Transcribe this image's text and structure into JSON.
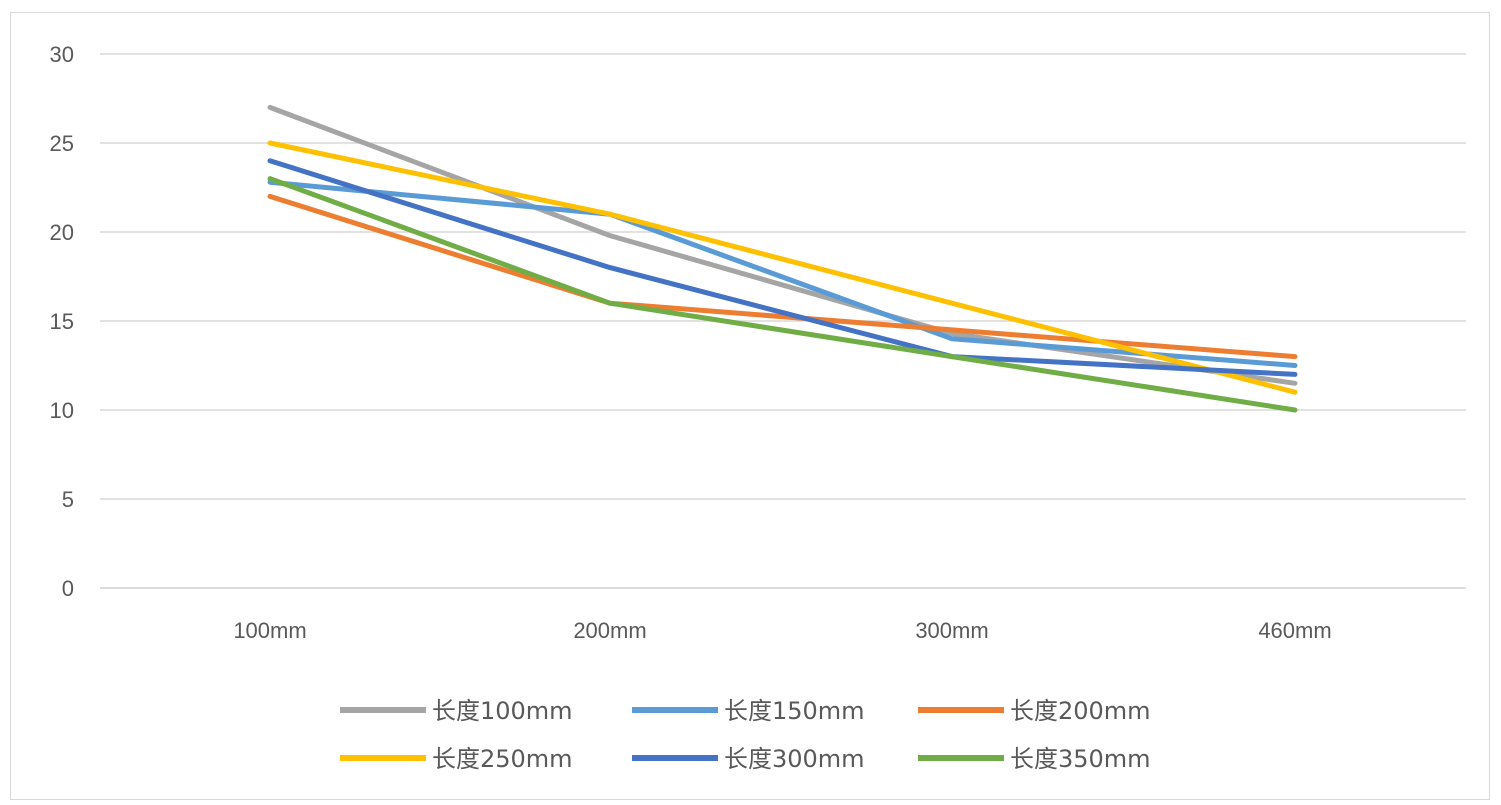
{
  "chart_data": {
    "type": "line",
    "categories": [
      "100mm",
      "200mm",
      "300mm",
      "460mm"
    ],
    "y_ticks": [
      "0",
      "5",
      "10",
      "15",
      "20",
      "25",
      "30"
    ],
    "ylim": [
      0,
      30
    ],
    "grid": true,
    "legend_position": "bottom",
    "series": [
      {
        "name": "长度100mm",
        "color": "#a5a5a5",
        "values": [
          27,
          19.8,
          14.3,
          11.5
        ]
      },
      {
        "name": "长度150mm",
        "color": "#5b9bd5",
        "values": [
          22.8,
          21,
          14,
          12.5
        ]
      },
      {
        "name": "长度200mm",
        "color": "#ed7d31",
        "values": [
          22,
          16,
          14.5,
          13
        ]
      },
      {
        "name": "长度250mm",
        "color": "#ffc000",
        "values": [
          25,
          21,
          16,
          11
        ]
      },
      {
        "name": "长度300mm",
        "color": "#4472c4",
        "values": [
          24,
          18,
          13,
          12
        ]
      },
      {
        "name": "长度350mm",
        "color": "#70ad47",
        "values": [
          23,
          16,
          13,
          10
        ]
      }
    ]
  }
}
